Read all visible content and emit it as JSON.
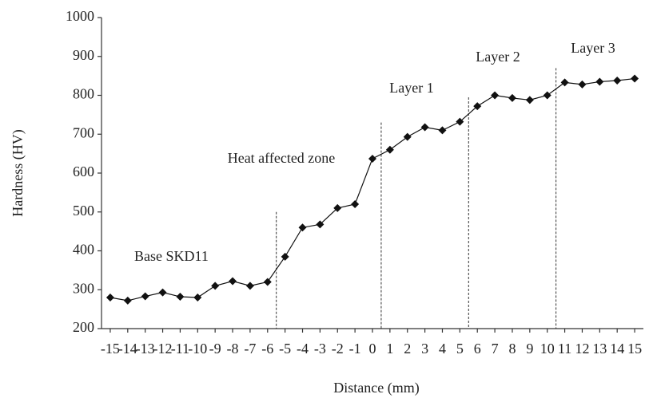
{
  "chart_data": {
    "type": "line",
    "x_label": "Distance (mm)",
    "y_label": "Hardness (HV)",
    "x": [
      -15,
      -14,
      -13,
      -12,
      -11,
      -10,
      -9,
      -8,
      -7,
      -6,
      -5,
      -4,
      -3,
      -2,
      -1,
      0,
      1,
      2,
      3,
      4,
      5,
      6,
      7,
      8,
      9,
      10,
      11,
      12,
      13,
      14,
      15
    ],
    "series": [
      {
        "color": "#111111",
        "marker": "diamond",
        "values": [
          280,
          272,
          283,
          293,
          282,
          280,
          310,
          322,
          310,
          320,
          385,
          460,
          468,
          510,
          520,
          637,
          660,
          693,
          718,
          710,
          732,
          772,
          800,
          793,
          788,
          800,
          833,
          828,
          835,
          838,
          843
        ]
      }
    ],
    "xlim": [
      -15.5,
      15.5
    ],
    "ylim": [
      200,
      1000
    ],
    "xticks": [
      -15,
      -14,
      -13,
      -12,
      -11,
      -10,
      -9,
      -8,
      -7,
      -6,
      -5,
      -4,
      -3,
      -2,
      -1,
      0,
      1,
      2,
      3,
      4,
      5,
      6,
      7,
      8,
      9,
      10,
      11,
      12,
      13,
      14,
      15
    ],
    "yticks": [
      200,
      300,
      400,
      500,
      600,
      700,
      800,
      900,
      1000
    ],
    "boundaries": [
      {
        "x": -5.5,
        "top": 500
      },
      {
        "x": 0.5,
        "top": 730
      },
      {
        "x": 5.5,
        "top": 795
      },
      {
        "x": 10.5,
        "top": 870
      }
    ],
    "annotations": [
      "Base SKD11",
      "Heat affected zone",
      "Layer 1",
      "Layer 2",
      "Layer 3"
    ]
  }
}
